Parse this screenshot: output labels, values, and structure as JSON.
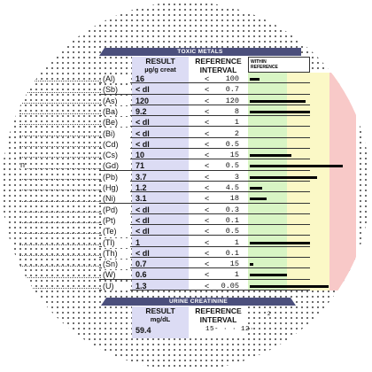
{
  "toxic_metals": {
    "title": "TOXIC METALS",
    "col_result": "RESULT",
    "col_result_unit": "µg/g creat",
    "col_reference": "REFERENCE",
    "col_interval": "INTERVAL",
    "col_within": "WITHIN",
    "col_reference_small": "REFERENCE",
    "rows": [
      {
        "sym": "(Al)",
        "value": "16",
        "lim": "100",
        "level": 0.1
      },
      {
        "sym": "(Sb)",
        "value": "< dl",
        "lim": "0.7",
        "level": 0
      },
      {
        "sym": "(As)",
        "value": "120",
        "lim": "120",
        "level": 0.6
      },
      {
        "sym": "(Ba)",
        "value": "9.2",
        "lim": "8",
        "level": 0.65
      },
      {
        "sym": "(Be)",
        "value": "< dl",
        "lim": "1",
        "level": 0
      },
      {
        "sym": "(Bi)",
        "value": "< dl",
        "lim": "2",
        "level": 0
      },
      {
        "sym": "(Cd)",
        "value": "< dl",
        "lim": "0.5",
        "level": 0
      },
      {
        "sym": "(Cs)",
        "value": "10",
        "lim": "15",
        "level": 0.45
      },
      {
        "sym": "(Gd)",
        "value": "71",
        "lim": "0.5",
        "level": 1.0
      },
      {
        "sym": "(Pb)",
        "value": "3.7",
        "lim": "3",
        "level": 0.72
      },
      {
        "sym": "(Hg)",
        "value": "1.2",
        "lim": "4.5",
        "level": 0.13
      },
      {
        "sym": "(Ni)",
        "value": "3.1",
        "lim": "18",
        "level": 0.18
      },
      {
        "sym": "(Pd)",
        "value": "< dl",
        "lim": "0.3",
        "level": 0
      },
      {
        "sym": "(Pt)",
        "value": "< dl",
        "lim": "0.1",
        "level": 0
      },
      {
        "sym": "(Te)",
        "value": "< dl",
        "lim": "0.5",
        "level": 0
      },
      {
        "sym": "(Tl)",
        "value": "1",
        "lim": "1",
        "level": 0.65
      },
      {
        "sym": "(Th)",
        "value": "< dl",
        "lim": "0.1",
        "level": 0
      },
      {
        "sym": "(Sn)",
        "value": "0.7",
        "lim": "15",
        "level": 0.04
      },
      {
        "sym": "(W)",
        "value": "0.6",
        "lim": "1",
        "level": 0.4
      },
      {
        "sym": "(U)",
        "value": "1.3",
        "lim": "0.05",
        "level": 0.85
      }
    ]
  },
  "urine_creatinine": {
    "title": "URINE CREATININE",
    "col_result": "RESULT",
    "col_result_unit": "mg/dL",
    "col_reference": "REFERENCE",
    "col_interval": "INTERVAL",
    "value": "59.4",
    "range": "15- · · 12·",
    "right_mark": "2"
  },
  "lt_symbol": "<",
  "left_fragment": "n",
  "colors": {
    "header_bar": "#4b4f7c",
    "result_col": "#dcdcf4",
    "within_green": "#d8f5c4",
    "elevated_yellow": "#fbf8c6",
    "very_elevated_red": "#f8c9c8",
    "bar": "#000000"
  }
}
